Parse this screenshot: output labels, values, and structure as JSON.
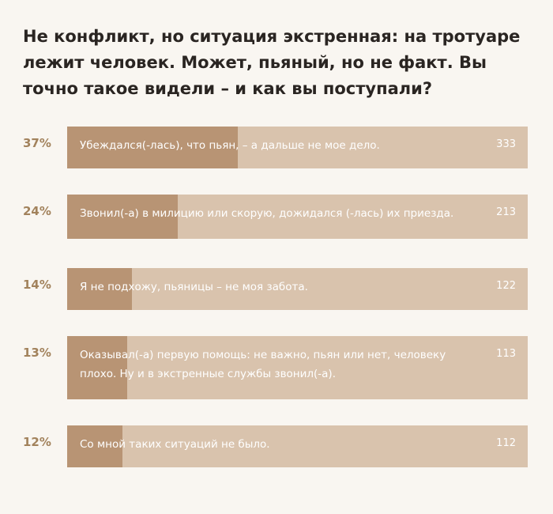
{
  "question": "Не конфликт, но ситуация экстренная: на тротуаре лежит человек. Может, пьяный, но не факт. Вы точно такое видели – и как вы поступали?",
  "colors": {
    "background": "#f9f6f1",
    "bar_track": "#d9c3ad",
    "bar_fill": "#b89474",
    "percent_text": "#a2825c",
    "title_text": "#2a2522"
  },
  "chart_data": {
    "type": "bar",
    "orientation": "horizontal",
    "title": "Не конфликт, но ситуация экстренная: на тротуаре лежит человек. Может, пьяный, но не факт. Вы точно такое видели – и как вы поступали?",
    "categories": [
      "Убеждался(-лась), что пьян, – а дальше не мое дело.",
      "Звонил(-а) в милицию или скорую, дожидался (-лась) их приезда.",
      "Я не подхожу, пьяницы – не моя забота.",
      "Оказывал(-а) первую помощь: не важно, пьян или нет, человеку плохо. Ну и в экстренные службы звонил(-а).",
      "Со мной таких ситуаций не было."
    ],
    "series": [
      {
        "values": [
          37,
          24,
          14,
          13,
          12
        ],
        "percent_labels": [
          "37%",
          "24%",
          "14%",
          "13%",
          "12%"
        ],
        "counts": [
          "333",
          "213",
          "122",
          "113",
          "112"
        ]
      }
    ]
  }
}
